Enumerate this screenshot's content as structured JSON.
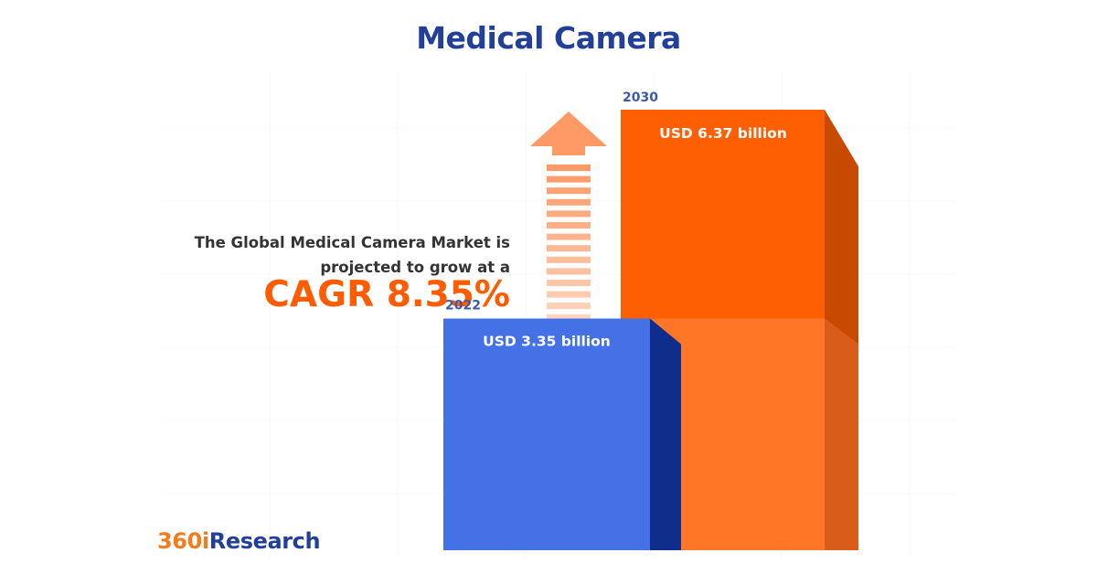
{
  "title": "Medical Camera",
  "description": {
    "line1": "The Global Medical Camera Market is",
    "line2": "projected to grow at a",
    "cagr": "CAGR 8.35%"
  },
  "colors": {
    "title": "#22409a",
    "accent": "#ff5c00",
    "bar_2022": "#4472e6",
    "bar_2030": "#ff5f03",
    "brand_orange": "#f27c1e",
    "brand_blue": "#22409a"
  },
  "chart_data": {
    "type": "bar",
    "title": "Medical Camera",
    "categories": [
      "2022",
      "2030"
    ],
    "values": [
      3.35,
      6.37
    ],
    "data_labels": [
      "USD 3.35 billion",
      "USD 6.37 billion"
    ],
    "unit": "USD billion",
    "xlabel": "",
    "ylabel": "",
    "grid": false,
    "legend": "none",
    "style": "3d-bar"
  },
  "logo": {
    "part1": "360i",
    "part2": "Research"
  }
}
